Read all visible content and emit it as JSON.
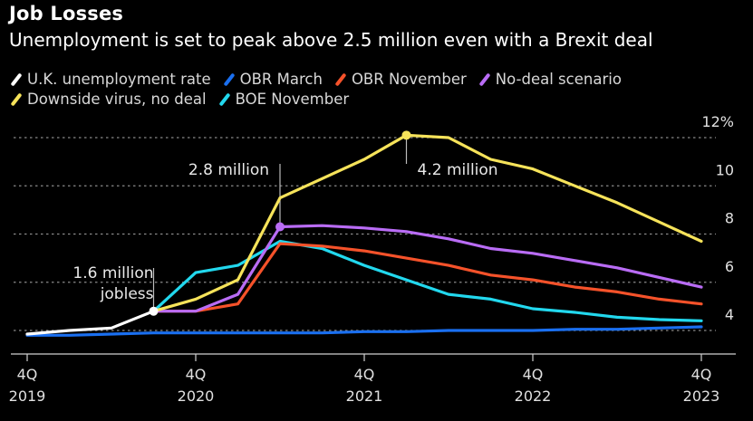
{
  "header": {
    "title": "Job Losses",
    "subtitle": "Unemployment is set to peak above 2.5 million even with a Brexit deal"
  },
  "chart_data": {
    "type": "line",
    "title": "Job Losses",
    "subtitle": "Unemployment is set to peak above 2.5 million even with a Brexit deal",
    "xlabel": "",
    "ylabel": "",
    "y_unit": "%",
    "ylim": [
      4,
      12
    ],
    "yticks": [
      4,
      6,
      8,
      10,
      12
    ],
    "ytick_labels": [
      "4",
      "6",
      "8",
      "10",
      "12%"
    ],
    "grid": true,
    "legend_position": "top-left",
    "x": [
      "4Q 2019",
      "1Q 2020",
      "2Q 2020",
      "3Q 2020",
      "4Q 2020",
      "1Q 2021",
      "2Q 2021",
      "3Q 2021",
      "4Q 2021",
      "1Q 2022",
      "2Q 2022",
      "3Q 2022",
      "4Q 2022",
      "1Q 2023",
      "2Q 2023",
      "3Q 2023",
      "4Q 2023"
    ],
    "xticks": [
      {
        "index": 0,
        "line1": "4Q",
        "line2": "2019"
      },
      {
        "index": 4,
        "line1": "4Q",
        "line2": "2020"
      },
      {
        "index": 8,
        "line1": "4Q",
        "line2": "2021"
      },
      {
        "index": 12,
        "line1": "4Q",
        "line2": "2022"
      },
      {
        "index": 16,
        "line1": "4Q",
        "line2": "2023"
      }
    ],
    "series": [
      {
        "name": "OBR March",
        "color": "#1a6ff0",
        "start": 0,
        "values": [
          3.8,
          3.8,
          3.85,
          3.9,
          3.9,
          3.9,
          3.9,
          3.9,
          3.95,
          3.95,
          4.0,
          4.0,
          4.0,
          4.05,
          4.05,
          4.1,
          4.15
        ]
      },
      {
        "name": "BOE November",
        "color": "#22d8ee",
        "start": 3,
        "values": [
          4.8,
          6.4,
          6.7,
          7.7,
          7.4,
          6.7,
          6.1,
          5.5,
          5.3,
          4.9,
          4.75,
          4.55,
          4.45,
          4.4
        ]
      },
      {
        "name": "OBR November",
        "color": "#f5522a",
        "start": 3,
        "values": [
          4.8,
          4.8,
          5.1,
          7.6,
          7.5,
          7.3,
          7.0,
          6.7,
          6.3,
          6.1,
          5.8,
          5.6,
          5.3,
          5.1
        ]
      },
      {
        "name": "No-deal scenario",
        "color": "#b96cf5",
        "start": 3,
        "values": [
          4.8,
          4.8,
          5.5,
          8.3,
          8.35,
          8.25,
          8.1,
          7.8,
          7.4,
          7.2,
          6.9,
          6.6,
          6.2,
          5.8
        ]
      },
      {
        "name": "Downside virus, no deal",
        "color": "#f6e35a",
        "start": 3,
        "values": [
          4.8,
          5.3,
          6.1,
          9.5,
          10.3,
          11.1,
          12.1,
          12.0,
          11.1,
          10.7,
          10.0,
          9.3,
          8.5,
          7.7
        ]
      },
      {
        "name": "U.K. unemployment rate",
        "color": "#ffffff",
        "start": 0,
        "values": [
          3.85,
          4.0,
          4.1,
          4.8
        ]
      }
    ],
    "annotations": [
      {
        "text_lines": [
          "1.6 million",
          "jobless"
        ],
        "series": "U.K. unemployment rate",
        "index": 3
      },
      {
        "text_lines": [
          "2.8 million"
        ],
        "series": "No-deal scenario",
        "index": 6
      },
      {
        "text_lines": [
          "4.2 million"
        ],
        "series": "Downside virus, no deal",
        "index": 9
      }
    ]
  },
  "legend": {
    "rows": [
      [
        {
          "label": "U.K. unemployment rate",
          "color": "#ffffff"
        },
        {
          "label": "OBR March",
          "color": "#1a6ff0"
        },
        {
          "label": "OBR November",
          "color": "#f5522a"
        },
        {
          "label": "No-deal scenario",
          "color": "#b96cf5"
        }
      ],
      [
        {
          "label": "Downside virus, no deal",
          "color": "#f6e35a"
        },
        {
          "label": "BOE November",
          "color": "#22d8ee"
        }
      ]
    ]
  }
}
